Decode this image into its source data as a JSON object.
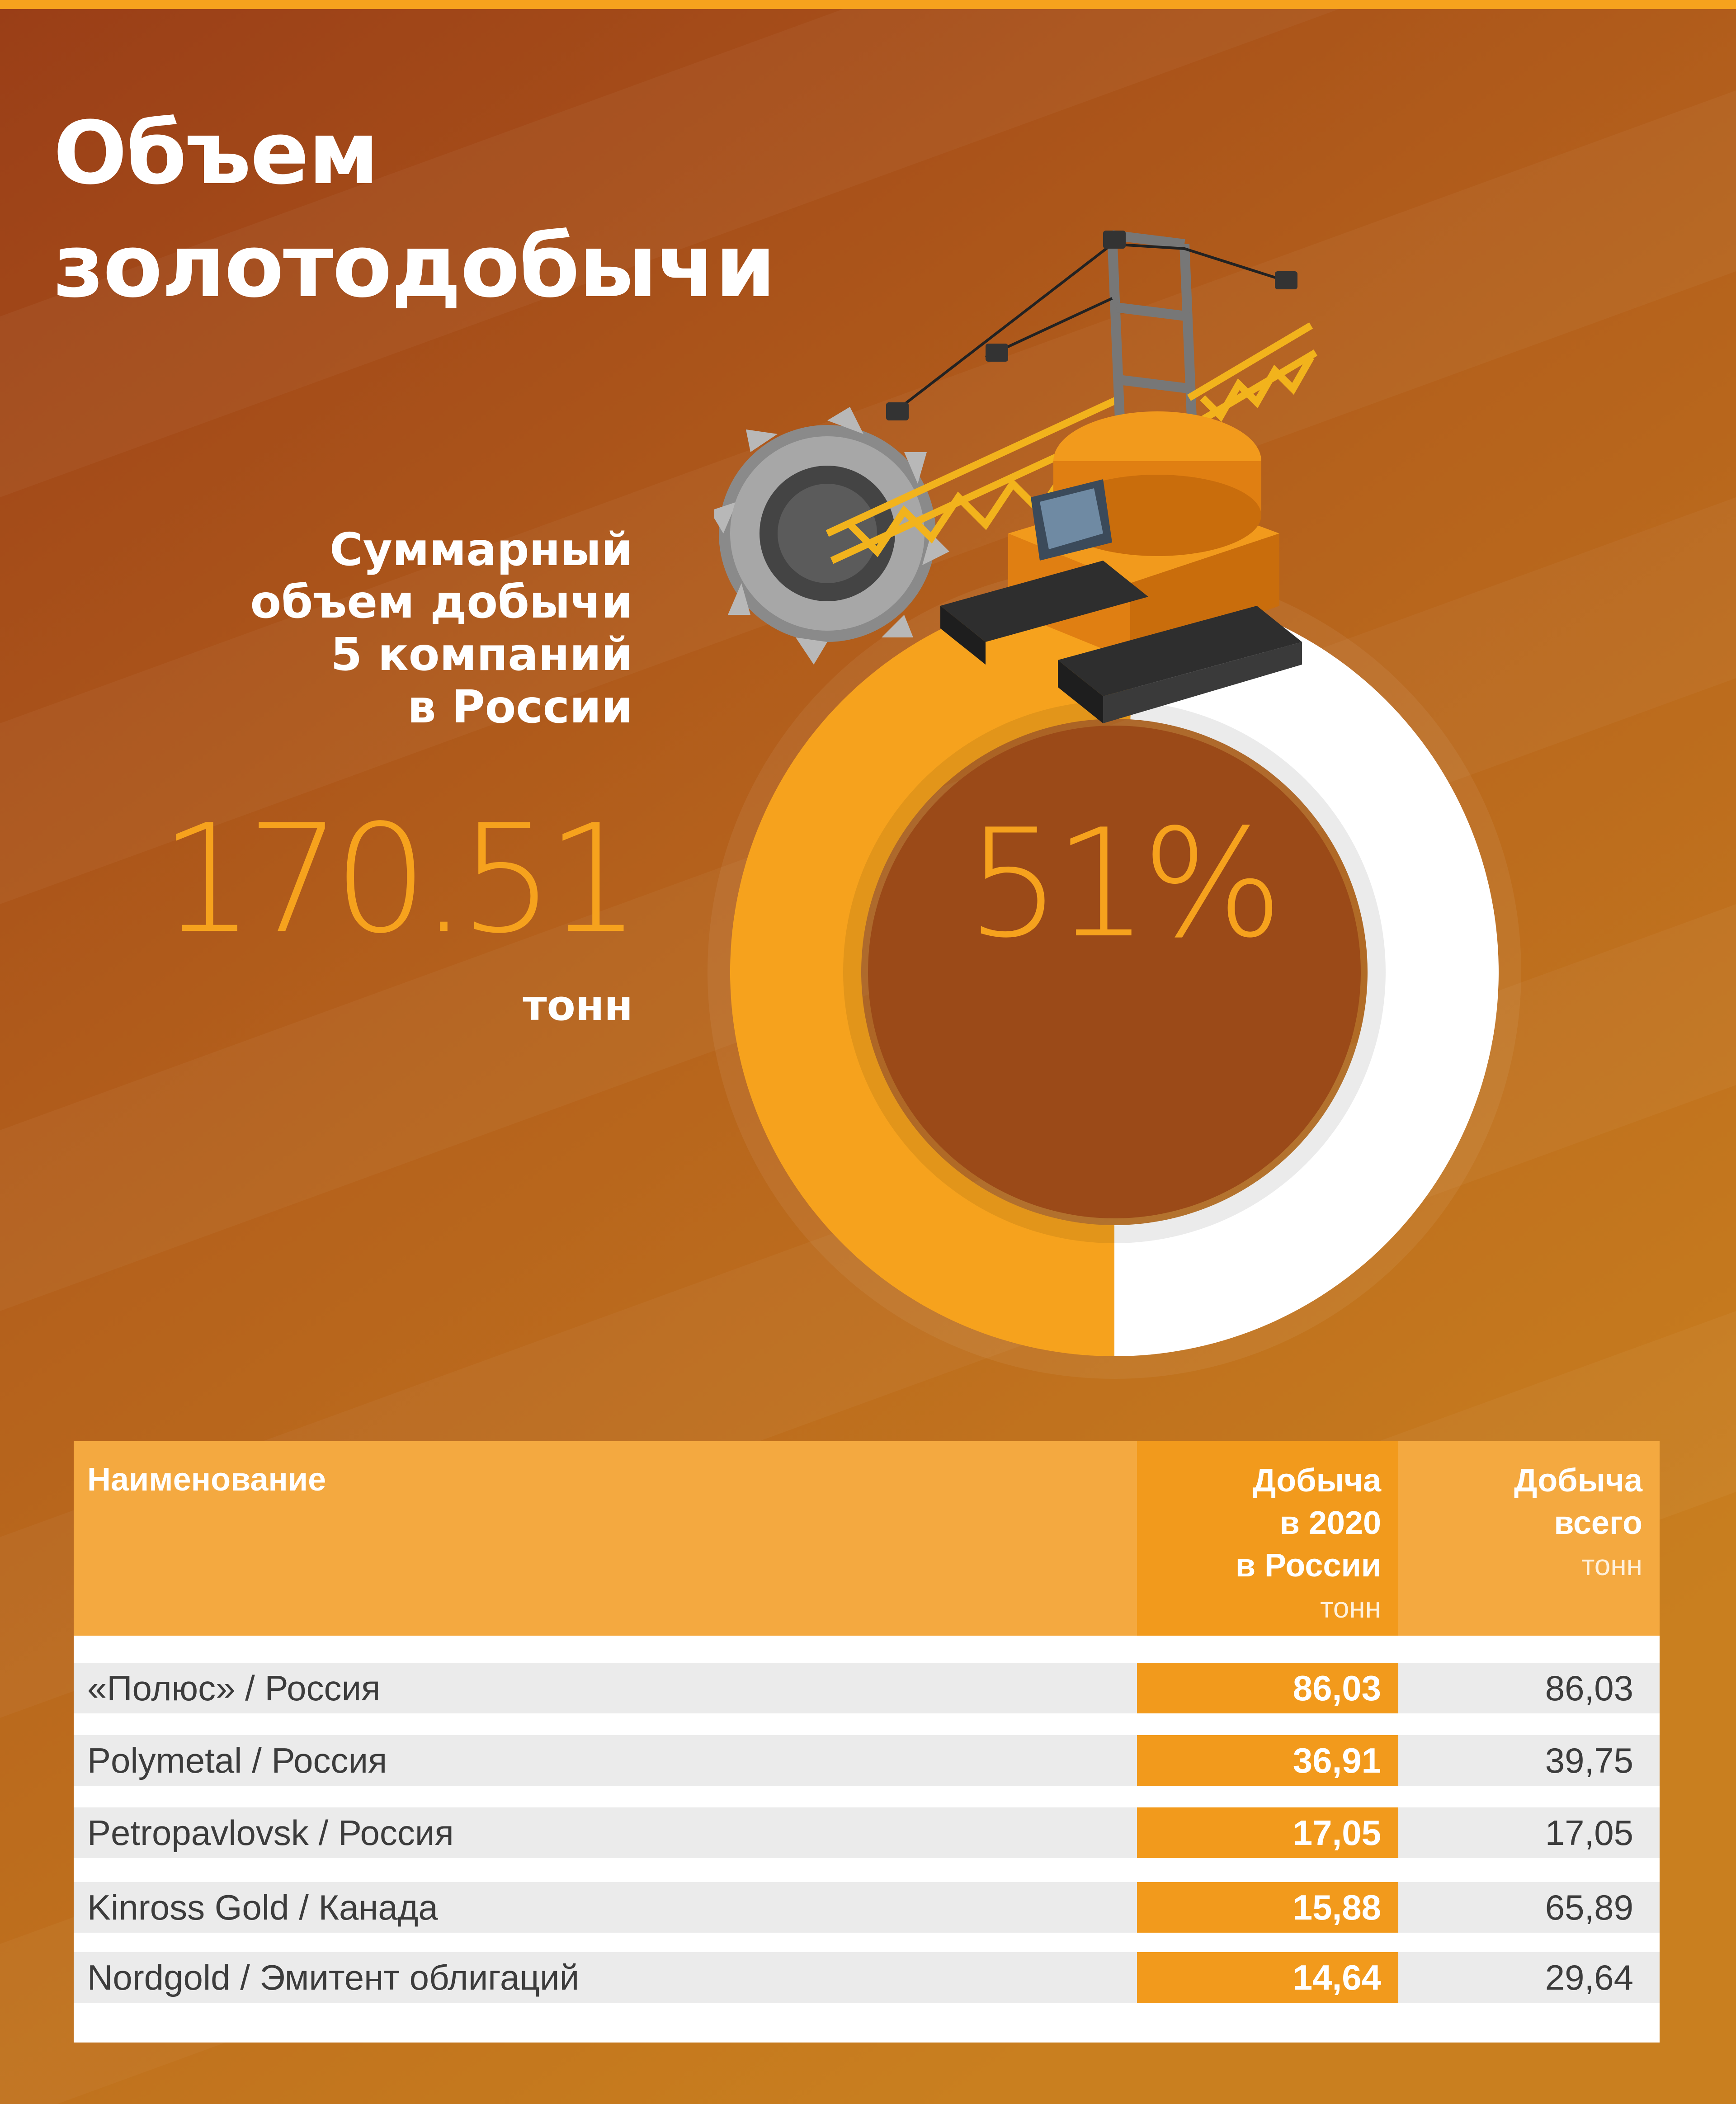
{
  "title": {
    "line1": "Объем",
    "line2": "золотодобычи"
  },
  "summary": {
    "lines": [
      "Суммарный",
      "объем добычи",
      "5 компаний",
      "в России"
    ],
    "total": "170.51",
    "unit": "тонн",
    "percent": "51%"
  },
  "chart_data": {
    "type": "pie",
    "values": [
      51,
      49
    ],
    "center_label": "51%"
  },
  "table": {
    "headers": {
      "name": "Наименование",
      "col2": [
        "Добыча",
        "в 2020",
        "в России"
      ],
      "col2_unit": "тонн",
      "col3": [
        "Добыча",
        "всего"
      ],
      "col3_unit": "тонн"
    },
    "rows": [
      {
        "name": "«Полюс» / Россия",
        "russia_2020": "86,03",
        "total": "86,03"
      },
      {
        "name": "Polymetal / Россия",
        "russia_2020": "36,91",
        "total": "39,75"
      },
      {
        "name": "Petropavlovsk / Россия",
        "russia_2020": "17,05",
        "total": "17,05"
      },
      {
        "name": "Kinross Gold / Канада",
        "russia_2020": "15,88",
        "total": "65,89"
      },
      {
        "name": "Nordgold / Эмитент облигаций",
        "russia_2020": "14,64",
        "total": "29,64"
      }
    ]
  },
  "colors": {
    "accent": "#f6a21d",
    "header_dark": "#f29a1c",
    "header_light": "#f4a940",
    "bg_top": "#9a3f16",
    "bg_bottom": "#c4761c"
  }
}
